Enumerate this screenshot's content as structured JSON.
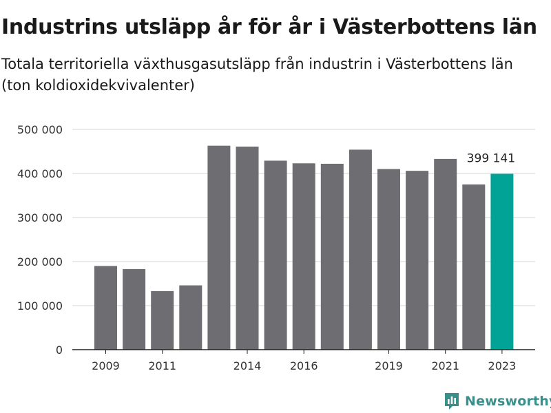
{
  "chart_data": {
    "type": "bar",
    "title": "Industrins utsläpp år för år i Västerbottens län",
    "subtitle": "Totala territoriella växthusgasutsläpp från industrin i Västerbottens län (ton koldioxidekvivalenter)",
    "categories": [
      "2009",
      "2010",
      "2011",
      "2012",
      "2013",
      "2014",
      "2015",
      "2016",
      "2017",
      "2018",
      "2019",
      "2020",
      "2021",
      "2022",
      "2023"
    ],
    "x_tick_labels": [
      "2009",
      "",
      "2011",
      "",
      "",
      "2014",
      "",
      "2016",
      "",
      "",
      "2019",
      "",
      "2021",
      "",
      "2023"
    ],
    "values": [
      190000,
      183000,
      133000,
      146000,
      463000,
      461000,
      429000,
      423000,
      422000,
      454000,
      410000,
      406000,
      433000,
      375000,
      399141
    ],
    "highlight_index": 14,
    "highlight_label": "399 141",
    "ylim": [
      0,
      500000
    ],
    "y_ticks": [
      0,
      100000,
      200000,
      300000,
      400000,
      500000
    ],
    "y_tick_labels": [
      "0",
      "100 000",
      "200 000",
      "300 000",
      "400 000",
      "500 000"
    ],
    "xlabel": "",
    "ylabel": "",
    "grid": true,
    "legend": "none",
    "colors": {
      "bar": "#6d6d72",
      "highlight": "#00a396",
      "grid": "#d4d4d4",
      "axis": "#222222"
    }
  },
  "brand": {
    "name": "Newsworthy",
    "icon": "newsworthy-logo-icon",
    "color": "#3b8f8a"
  }
}
